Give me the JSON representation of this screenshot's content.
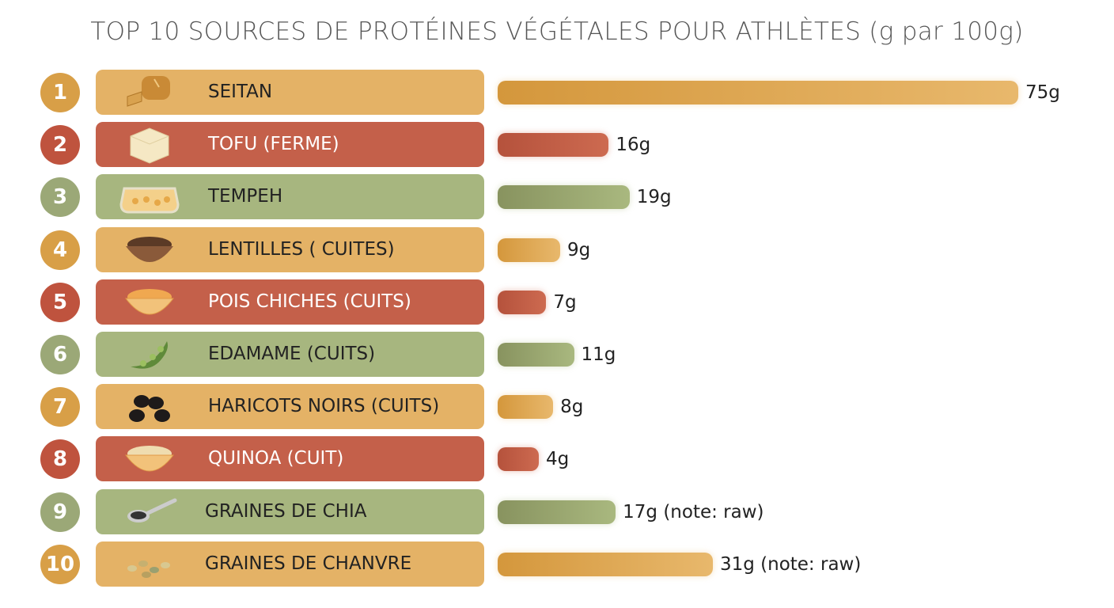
{
  "chart_data": {
    "type": "bar",
    "orientation": "horizontal",
    "title": "TOP 10 SOURCES DE PROTÉINES VÉGÉTALES POUR ATHLÈTES (g par 100g)",
    "unit": "g",
    "categories": [
      "SEITAN",
      "TOFU (FERME)",
      "TEMPEH",
      "LENTILLES ( CUITES)",
      "POIS CHICHES (CUITS)",
      "EDAMAME (CUITS)",
      "HARICOTS NOIRS (CUITS)",
      "QUINOA (CUIT)",
      "GRAINES DE CHIA",
      "GRAINES DE CHANVRE"
    ],
    "ranks": [
      "1",
      "2",
      "3",
      "4",
      "5",
      "6",
      "7",
      "8",
      "9",
      "10"
    ],
    "values": [
      75,
      16,
      19,
      9,
      7,
      11,
      8,
      4,
      17,
      31
    ],
    "value_labels": [
      "75g",
      "16g",
      "19g",
      "9g",
      "7g",
      "11g",
      "8g",
      "4g",
      "17g (note: raw)",
      "31g (note: raw)"
    ],
    "icons": [
      "bread-loaf-icon",
      "tofu-cube-icon",
      "tempeh-block-icon",
      "lentil-bowl-icon",
      "chickpea-bowl-icon",
      "edamame-pod-icon",
      "black-beans-icon",
      "quinoa-bowl-icon",
      "chia-spoon-icon",
      "hemp-seeds-icon"
    ],
    "row_themes": [
      "orange",
      "red",
      "green",
      "orange",
      "red",
      "green",
      "orange",
      "red",
      "green",
      "orange"
    ],
    "grid": false,
    "legend": "none"
  },
  "colors": {
    "orange": {
      "box": "#e4b266",
      "num": "#d89f47",
      "bar1": "#d4973c",
      "bar2": "#e8b86c",
      "text": "#222"
    },
    "red": {
      "box": "#c4604a",
      "num": "#bf533e",
      "bar1": "#b5523c",
      "bar2": "#cd6a50",
      "text": "#fff"
    },
    "green": {
      "box": "#a7b67f",
      "num": "#9ba877",
      "bar1": "#88935f",
      "bar2": "#a9b87f",
      "text": "#222"
    }
  }
}
